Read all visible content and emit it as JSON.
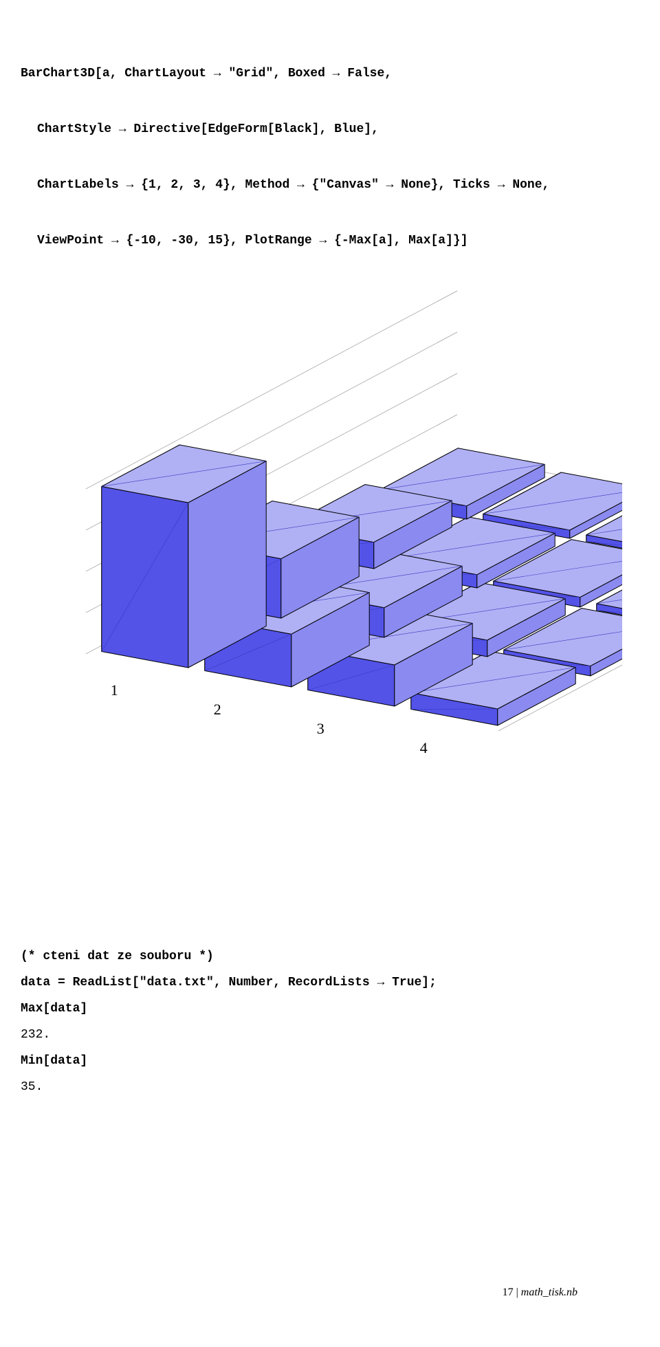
{
  "code": {
    "line1": "BarChart3D[a, ChartLayout → \"Grid\", Boxed → False,",
    "line2": "ChartStyle → Directive[EdgeForm[Black], Blue],",
    "line3": "ChartLabels → {1, 2, 3, 4}, Method → {\"Canvas\" → None}, Ticks → None,",
    "line4": "ViewPoint → {-10, -30, 15}, PlotRange → {-Max[a], Max[a]}]"
  },
  "chart": {
    "type": "barchart3d-grid",
    "rows": 4,
    "cols": 4,
    "heights": [
      [
        1.0,
        0.32,
        0.25,
        0.1
      ],
      [
        0.36,
        0.18,
        0.1,
        0.06
      ],
      [
        0.16,
        0.08,
        0.06,
        0.04
      ],
      [
        0.08,
        0.05,
        0.04,
        0.03
      ]
    ],
    "axis_labels": [
      "1",
      "2",
      "3",
      "4"
    ],
    "bar_fill": "#5353e8",
    "bar_fill_light": "#8a8af0",
    "bar_fill_top": "#b0b0f5",
    "bar_edge": "#000000",
    "gridline_color": "#b8b8b8",
    "label_fontsize": 22,
    "label_font": "serif"
  },
  "comment": "(* cteni dat ze souboru *)",
  "code2": "data = ReadList[\"data.txt\", Number, RecordLists → True];",
  "code3": "Max[data]",
  "out3": "232.",
  "code4": "Min[data]",
  "out4": "35.",
  "footer": {
    "page": "17",
    "sep": " | ",
    "file": "math_tisk.nb"
  }
}
